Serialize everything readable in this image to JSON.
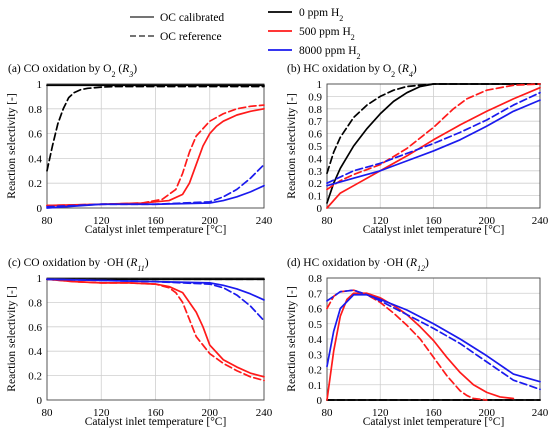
{
  "legend": {
    "style_items": [
      {
        "label": "OC calibrated",
        "dash": "solid"
      },
      {
        "label": "OC reference",
        "dash": "dashed"
      }
    ],
    "color_items": [
      {
        "label": "0 ppm H",
        "sub": "2",
        "color": "#000000"
      },
      {
        "label": "500 ppm H",
        "sub": "2",
        "color": "#ff1a1a"
      },
      {
        "label": "8000 ppm H",
        "sub": "2",
        "color": "#1a1aee"
      }
    ]
  },
  "chart_data": [
    {
      "type": "line",
      "title": "(a) CO oxidation by O",
      "title_sub": "2",
      "title_tag": "R",
      "title_tag_sub": "3",
      "xlabel": "",
      "ylabel": "Reaction selectivity [-]",
      "xlim": [
        80,
        240
      ],
      "ylim": [
        0,
        1
      ],
      "xticks": [
        80,
        120,
        160,
        200,
        240
      ],
      "yticks": [
        0,
        0.2,
        0.4,
        0.6,
        0.8,
        1
      ],
      "yticklabels": [
        "0",
        "0.2",
        "0.4",
        "0.6",
        "0.8",
        "1"
      ],
      "grid": true,
      "series": [
        {
          "color": "#000000",
          "dash": "solid",
          "x": [
            80,
            240
          ],
          "y": [
            0.99,
            0.99
          ]
        },
        {
          "color": "#000000",
          "dash": "dashed",
          "x": [
            80,
            84,
            88,
            92,
            96,
            100,
            105,
            110,
            115,
            120,
            130,
            140,
            160,
            200,
            240
          ],
          "y": [
            0.3,
            0.5,
            0.68,
            0.8,
            0.89,
            0.93,
            0.955,
            0.965,
            0.97,
            0.975,
            0.98,
            0.98,
            0.98,
            0.98,
            0.98
          ]
        },
        {
          "color": "#ff1a1a",
          "dash": "solid",
          "x": [
            80,
            120,
            150,
            170,
            180,
            185,
            190,
            195,
            200,
            205,
            210,
            220,
            230,
            240
          ],
          "y": [
            0.02,
            0.03,
            0.04,
            0.06,
            0.11,
            0.2,
            0.35,
            0.5,
            0.6,
            0.66,
            0.7,
            0.75,
            0.78,
            0.8
          ]
        },
        {
          "color": "#ff1a1a",
          "dash": "dashed",
          "x": [
            80,
            120,
            150,
            165,
            175,
            180,
            185,
            190,
            200,
            210,
            220,
            230,
            240
          ],
          "y": [
            0.02,
            0.03,
            0.04,
            0.07,
            0.15,
            0.28,
            0.45,
            0.58,
            0.7,
            0.76,
            0.8,
            0.82,
            0.83
          ]
        },
        {
          "color": "#1a1aee",
          "dash": "solid",
          "x": [
            80,
            120,
            160,
            200,
            210,
            220,
            230,
            240
          ],
          "y": [
            0.0,
            0.03,
            0.03,
            0.04,
            0.06,
            0.09,
            0.13,
            0.18
          ]
        },
        {
          "color": "#1a1aee",
          "dash": "dashed",
          "x": [
            80,
            120,
            160,
            200,
            210,
            220,
            230,
            240
          ],
          "y": [
            0.01,
            0.03,
            0.03,
            0.05,
            0.09,
            0.15,
            0.24,
            0.35
          ]
        }
      ]
    },
    {
      "type": "line",
      "title": "(b) HC oxidation by O",
      "title_sub": "2",
      "title_tag": "R",
      "title_tag_sub": "4",
      "xlabel": "Catalyst inlet temperature [°C]",
      "ylabel": "",
      "xlim": [
        80,
        240
      ],
      "ylim": [
        0,
        1
      ],
      "xticks": [
        80,
        120,
        160,
        200,
        240
      ],
      "yticks": [
        0,
        0.1,
        0.2,
        0.3,
        0.4,
        0.5,
        0.6,
        0.7,
        0.8,
        0.9,
        1
      ],
      "yticklabels": [
        "0",
        "0.1",
        "0.2",
        "0.3",
        "0.4",
        "0.5",
        "0.6",
        "0.7",
        "0.8",
        "0.9",
        "1"
      ],
      "grid": true,
      "series": [
        {
          "color": "#000000",
          "dash": "solid",
          "x": [
            80,
            85,
            90,
            100,
            110,
            120,
            130,
            140,
            150,
            160,
            170,
            200,
            240
          ],
          "y": [
            0.04,
            0.2,
            0.32,
            0.5,
            0.64,
            0.76,
            0.86,
            0.93,
            0.98,
            1.0,
            1.0,
            1.0,
            1.0
          ]
        },
        {
          "color": "#000000",
          "dash": "dashed",
          "x": [
            80,
            85,
            90,
            100,
            110,
            120,
            130,
            140,
            160,
            200,
            240
          ],
          "y": [
            0.28,
            0.45,
            0.57,
            0.73,
            0.83,
            0.9,
            0.95,
            0.98,
            1.0,
            1.0,
            1.0
          ]
        },
        {
          "color": "#ff1a1a",
          "dash": "solid",
          "x": [
            80,
            90,
            100,
            120,
            140,
            160,
            180,
            200,
            220,
            240
          ],
          "y": [
            0.0,
            0.12,
            0.18,
            0.3,
            0.42,
            0.55,
            0.67,
            0.78,
            0.88,
            0.97
          ]
        },
        {
          "color": "#ff1a1a",
          "dash": "dashed",
          "x": [
            80,
            90,
            100,
            120,
            140,
            160,
            175,
            185,
            200,
            220,
            240
          ],
          "y": [
            0.15,
            0.22,
            0.27,
            0.35,
            0.48,
            0.65,
            0.8,
            0.88,
            0.95,
            0.99,
            1.0
          ]
        },
        {
          "color": "#1a1aee",
          "dash": "solid",
          "x": [
            80,
            100,
            120,
            140,
            160,
            180,
            200,
            220,
            240
          ],
          "y": [
            0.18,
            0.24,
            0.3,
            0.38,
            0.46,
            0.55,
            0.66,
            0.78,
            0.87
          ]
        },
        {
          "color": "#1a1aee",
          "dash": "dashed",
          "x": [
            80,
            100,
            120,
            140,
            160,
            180,
            200,
            220,
            240
          ],
          "y": [
            0.2,
            0.3,
            0.36,
            0.44,
            0.52,
            0.61,
            0.71,
            0.83,
            0.93
          ]
        }
      ]
    },
    {
      "type": "line",
      "title": "(c) CO oxidation by ·OH",
      "title_sub": "",
      "title_tag": "R",
      "title_tag_sub": "11",
      "xlabel": "Catalyst inlet temperature [°C]",
      "ylabel": "Reaction selectivity [-]",
      "xlim": [
        80,
        240
      ],
      "ylim": [
        0,
        1
      ],
      "xticks": [
        80,
        120,
        160,
        200,
        240
      ],
      "yticks": [
        0,
        0.2,
        0.4,
        0.6,
        0.8,
        1
      ],
      "yticklabels": [
        "0",
        "0.2",
        "0.4",
        "0.6",
        "0.8",
        "1"
      ],
      "grid": true,
      "series": [
        {
          "color": "#000000",
          "dash": "solid",
          "x": [
            80,
            240
          ],
          "y": [
            0.99,
            0.99
          ]
        },
        {
          "color": "#000000",
          "dash": "dashed",
          "x": [
            80,
            240
          ],
          "y": [
            0.99,
            0.99
          ]
        },
        {
          "color": "#ff1a1a",
          "dash": "solid",
          "x": [
            80,
            100,
            120,
            140,
            160,
            170,
            180,
            190,
            195,
            200,
            210,
            220,
            230,
            240
          ],
          "y": [
            0.99,
            0.97,
            0.96,
            0.96,
            0.95,
            0.93,
            0.88,
            0.72,
            0.6,
            0.45,
            0.33,
            0.27,
            0.22,
            0.19
          ]
        },
        {
          "color": "#ff1a1a",
          "dash": "dashed",
          "x": [
            80,
            100,
            120,
            140,
            160,
            170,
            175,
            180,
            185,
            190,
            200,
            210,
            220,
            230,
            240
          ],
          "y": [
            0.99,
            0.97,
            0.96,
            0.96,
            0.95,
            0.92,
            0.88,
            0.8,
            0.66,
            0.52,
            0.38,
            0.3,
            0.24,
            0.19,
            0.16
          ]
        },
        {
          "color": "#1a1aee",
          "dash": "solid",
          "x": [
            80,
            120,
            160,
            200,
            210,
            220,
            230,
            240
          ],
          "y": [
            0.99,
            0.98,
            0.97,
            0.96,
            0.94,
            0.91,
            0.87,
            0.82
          ]
        },
        {
          "color": "#1a1aee",
          "dash": "dashed",
          "x": [
            80,
            120,
            160,
            200,
            210,
            220,
            230,
            240
          ],
          "y": [
            0.99,
            0.98,
            0.97,
            0.95,
            0.92,
            0.86,
            0.77,
            0.65
          ]
        }
      ]
    },
    {
      "type": "line",
      "title": "(d) HC oxidation by ·OH",
      "title_sub": "",
      "title_tag": "R",
      "title_tag_sub": "12",
      "xlabel": "Catalyst inlet temperature [°C]",
      "ylabel": "Reaction selectivity [-]",
      "xlim": [
        80,
        240
      ],
      "ylim": [
        0,
        0.8
      ],
      "xticks": [
        80,
        120,
        160,
        200,
        240
      ],
      "yticks": [
        0,
        0.1,
        0.2,
        0.3,
        0.4,
        0.5,
        0.6,
        0.7,
        0.8
      ],
      "yticklabels": [
        "0",
        "0.1",
        "0.2",
        "0.3",
        "0.4",
        "0.5",
        "0.6",
        "0.7",
        "0.8"
      ],
      "grid": true,
      "series": [
        {
          "color": "#000000",
          "dash": "solid",
          "x": [
            80,
            240
          ],
          "y": [
            0.0,
            0.0
          ]
        },
        {
          "color": "#000000",
          "dash": "dashed",
          "x": [
            80,
            240
          ],
          "y": [
            0.0,
            0.0
          ]
        },
        {
          "color": "#ff1a1a",
          "dash": "solid",
          "x": [
            80,
            85,
            90,
            95,
            100,
            110,
            120,
            130,
            140,
            150,
            160,
            170,
            180,
            190,
            200,
            210,
            220
          ],
          "y": [
            0.0,
            0.32,
            0.55,
            0.66,
            0.7,
            0.7,
            0.67,
            0.62,
            0.56,
            0.48,
            0.39,
            0.28,
            0.18,
            0.1,
            0.05,
            0.02,
            0.01
          ]
        },
        {
          "color": "#ff1a1a",
          "dash": "dashed",
          "x": [
            80,
            85,
            90,
            100,
            110,
            120,
            130,
            140,
            150,
            160,
            170,
            180,
            185,
            190,
            200
          ],
          "y": [
            0.6,
            0.68,
            0.71,
            0.72,
            0.69,
            0.64,
            0.57,
            0.49,
            0.4,
            0.28,
            0.16,
            0.06,
            0.03,
            0.01,
            0.0
          ]
        },
        {
          "color": "#1a1aee",
          "dash": "solid",
          "x": [
            80,
            85,
            90,
            100,
            110,
            120,
            140,
            160,
            180,
            200,
            220,
            240
          ],
          "y": [
            0.22,
            0.45,
            0.6,
            0.69,
            0.69,
            0.66,
            0.59,
            0.5,
            0.4,
            0.29,
            0.17,
            0.12
          ]
        },
        {
          "color": "#1a1aee",
          "dash": "dashed",
          "x": [
            80,
            90,
            100,
            110,
            120,
            140,
            160,
            180,
            200,
            220,
            240
          ],
          "y": [
            0.65,
            0.71,
            0.72,
            0.69,
            0.65,
            0.56,
            0.47,
            0.37,
            0.25,
            0.13,
            0.07
          ]
        }
      ]
    }
  ]
}
